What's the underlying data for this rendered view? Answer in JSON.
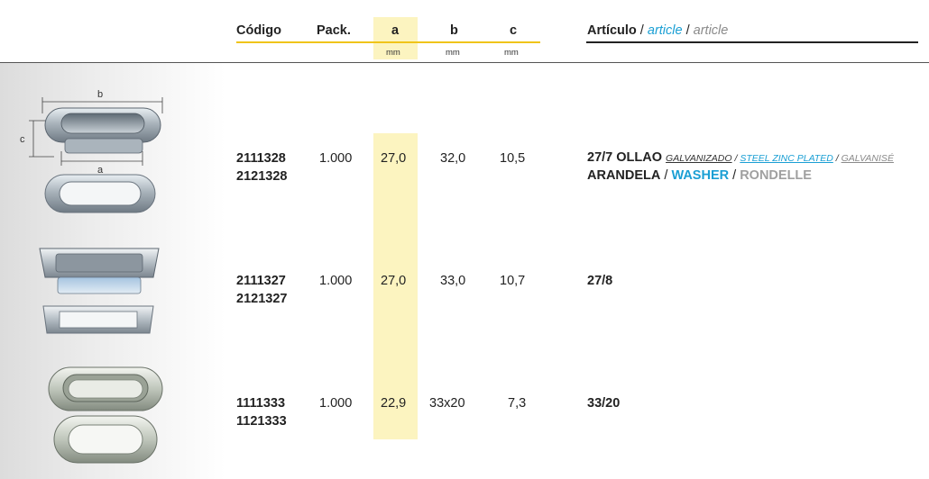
{
  "header": {
    "codigo": "Código",
    "pack": "Pack.",
    "a": "a",
    "b": "b",
    "c": "c",
    "unit_a": "mm",
    "unit_b": "mm",
    "unit_c": "mm",
    "articulo_es": "Artículo",
    "articulo_sep1": " / ",
    "articulo_en": "article",
    "articulo_sep2": " / ",
    "articulo_fr": "article"
  },
  "diagram": {
    "label_a": "a",
    "label_b": "b",
    "label_c": "c"
  },
  "rows": [
    {
      "code1": "2111328",
      "code2": "2121328",
      "pack": "1.000",
      "a": "27,0",
      "b": "32,0",
      "c": "10,5",
      "article_main": "27/7 OLLAO",
      "finish_es": "GALVANIZADO",
      "finish_sep1": " / ",
      "finish_en": "STEEL ZINC PLATED",
      "finish_sep2": " / ",
      "finish_fr": "GALVANISÉ",
      "washer_es": "ARANDELA",
      "washer_sep1": " / ",
      "washer_en": "WASHER",
      "washer_sep2": " / ",
      "washer_fr": "RONDELLE"
    },
    {
      "code1": "2111327",
      "code2": "2121327",
      "pack": "1.000",
      "a": "27,0",
      "b": "33,0",
      "c": "10,7",
      "article": "27/8"
    },
    {
      "code1": "1111333",
      "code2": "1121333",
      "pack": "1.000",
      "a": "22,9",
      "b": "33x20",
      "c": "7,3",
      "article": "33/20"
    }
  ],
  "colors": {
    "accent_yellow": "#f0c419",
    "column_highlight": "#fcf4c0",
    "english_blue": "#1a9fd4",
    "french_gray": "#8a8a8a"
  }
}
